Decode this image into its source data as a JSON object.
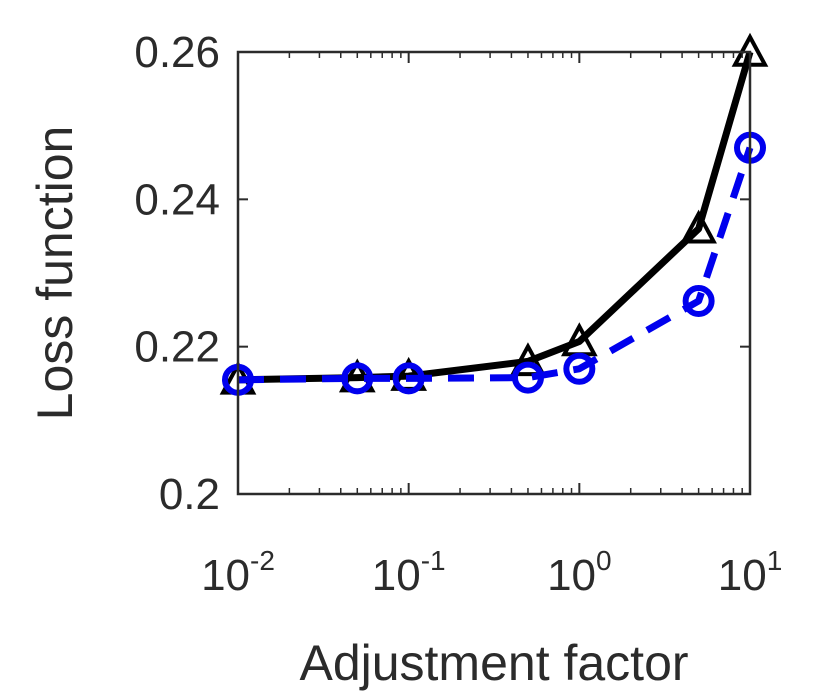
{
  "chart_data": {
    "type": "line",
    "title": "",
    "xlabel": "Adjustment factor",
    "ylabel": "Loss function",
    "xscale": "log",
    "xlim": [
      0.01,
      10
    ],
    "ylim": [
      0.2,
      0.26
    ],
    "grid": false,
    "x": [
      0.01,
      0.05,
      0.1,
      0.5,
      1,
      5,
      10
    ],
    "xticks": [
      {
        "value": 0.01,
        "base": "10",
        "exp": "-2"
      },
      {
        "value": 0.1,
        "base": "10",
        "exp": "-1"
      },
      {
        "value": 1,
        "base": "10",
        "exp": "0"
      },
      {
        "value": 10,
        "base": "10",
        "exp": "1"
      }
    ],
    "yticks": [
      {
        "value": 0.2,
        "label": "0.2"
      },
      {
        "value": 0.22,
        "label": "0.22"
      },
      {
        "value": 0.24,
        "label": "0.24"
      },
      {
        "value": 0.26,
        "label": "0.26"
      }
    ],
    "series": [
      {
        "color": "#000000",
        "line": "solid",
        "marker": "triangle",
        "values": [
          0.2155,
          0.2158,
          0.216,
          0.218,
          0.2207,
          0.236,
          0.26
        ]
      },
      {
        "color": "#0000ee",
        "line": "dashed",
        "marker": "circle",
        "values": [
          0.2155,
          0.2157,
          0.2157,
          0.2158,
          0.217,
          0.2262,
          0.247
        ]
      }
    ]
  }
}
